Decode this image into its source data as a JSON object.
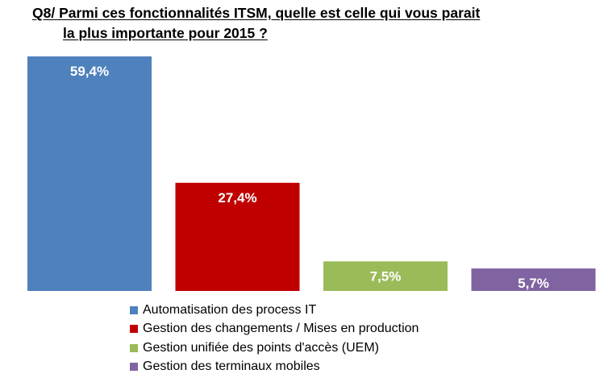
{
  "chart_data": {
    "type": "bar",
    "title_lines": [
      "Q8/ Parmi ces fonctionnalités ITSM, quelle est celle qui vous parait",
      "la plus importante pour 2015 ?"
    ],
    "categories": [
      "Automatisation des process IT",
      "Gestion des changements / Mises en production",
      "Gestion unifiée des points d'accès (UEM)",
      "Gestion des terminaux mobiles"
    ],
    "values": [
      59.4,
      27.4,
      7.5,
      5.7
    ],
    "data_labels": [
      "59,4%",
      "27,4%",
      "7,5%",
      "5,7%"
    ],
    "colors": [
      "#4f81bd",
      "#c00000",
      "#9bbb59",
      "#8064a2"
    ],
    "ylim": [
      0,
      59.4
    ],
    "grid": false,
    "legend_position": "bottom"
  }
}
